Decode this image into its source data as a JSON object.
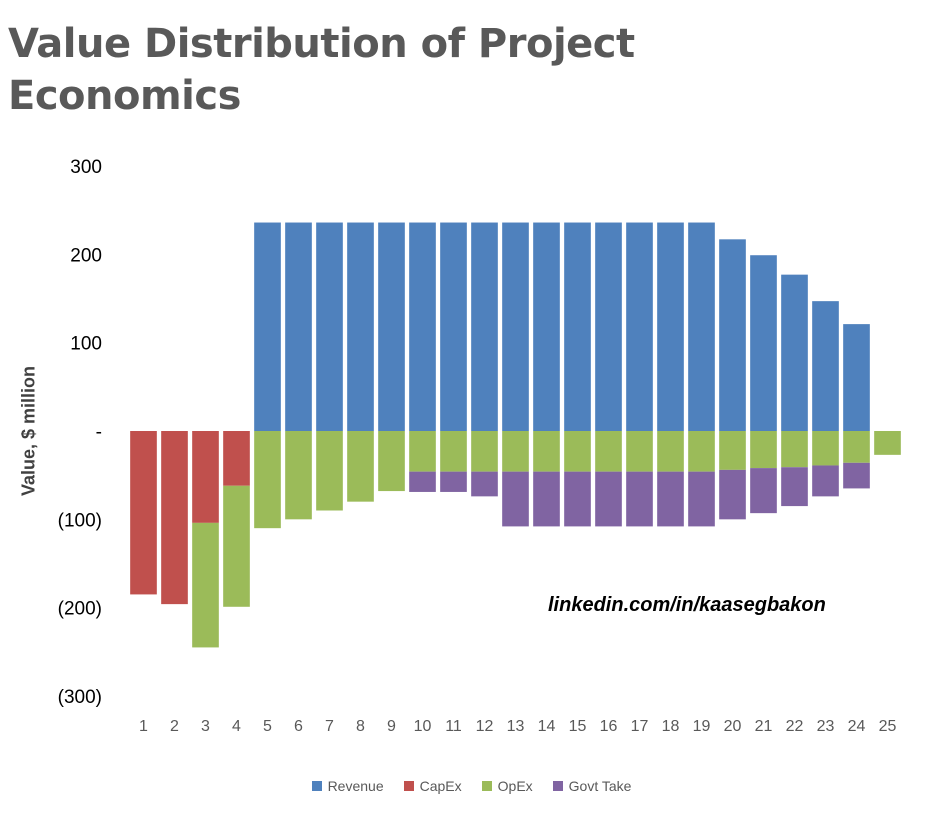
{
  "chart_data": {
    "type": "bar",
    "stacked": true,
    "title": "Value Distribution of Project Economics",
    "ylabel": "Value, $ million",
    "xlabel": "",
    "ylim": [
      -300,
      300
    ],
    "yticks": [
      {
        "value": 300,
        "label": "300"
      },
      {
        "value": 200,
        "label": "200"
      },
      {
        "value": 100,
        "label": "100"
      },
      {
        "value": 0,
        "label": "-"
      },
      {
        "value": -100,
        "label": "(100)"
      },
      {
        "value": -200,
        "label": "(200)"
      },
      {
        "value": -300,
        "label": "(300)"
      }
    ],
    "categories": [
      "1",
      "2",
      "3",
      "4",
      "5",
      "6",
      "7",
      "8",
      "9",
      "10",
      "11",
      "12",
      "13",
      "14",
      "15",
      "16",
      "17",
      "18",
      "19",
      "20",
      "21",
      "22",
      "23",
      "24",
      "25"
    ],
    "series": [
      {
        "name": "Revenue",
        "color": "#4F81BD",
        "values": [
          0,
          0,
          0,
          0,
          236,
          236,
          236,
          236,
          236,
          236,
          236,
          236,
          236,
          236,
          236,
          236,
          236,
          236,
          236,
          217,
          199,
          177,
          147,
          121,
          0
        ]
      },
      {
        "name": "CapEx",
        "color": "#C0504D",
        "values": [
          -185,
          -196,
          -104,
          -62,
          0,
          0,
          0,
          0,
          0,
          0,
          0,
          0,
          0,
          0,
          0,
          0,
          0,
          0,
          0,
          0,
          0,
          0,
          0,
          0,
          0
        ]
      },
      {
        "name": "OpEx",
        "color": "#9BBB59",
        "values": [
          0,
          0,
          -141,
          -137,
          -110,
          -100,
          -90,
          -80,
          -68,
          -46,
          -46,
          -46,
          -46,
          -46,
          -46,
          -46,
          -46,
          -46,
          -46,
          -44,
          -42,
          -41,
          -39,
          -36,
          -27
        ]
      },
      {
        "name": "Govt Take",
        "color": "#8064A2",
        "values": [
          0,
          0,
          0,
          0,
          0,
          0,
          0,
          0,
          0,
          -23,
          -23,
          -28,
          -62,
          -62,
          -62,
          -62,
          -62,
          -62,
          -62,
          -56,
          -51,
          -44,
          -35,
          -29,
          0
        ]
      }
    ],
    "legend_position": "bottom",
    "grid": false
  },
  "watermark": "linkedin.com/in/kaasegbakon"
}
